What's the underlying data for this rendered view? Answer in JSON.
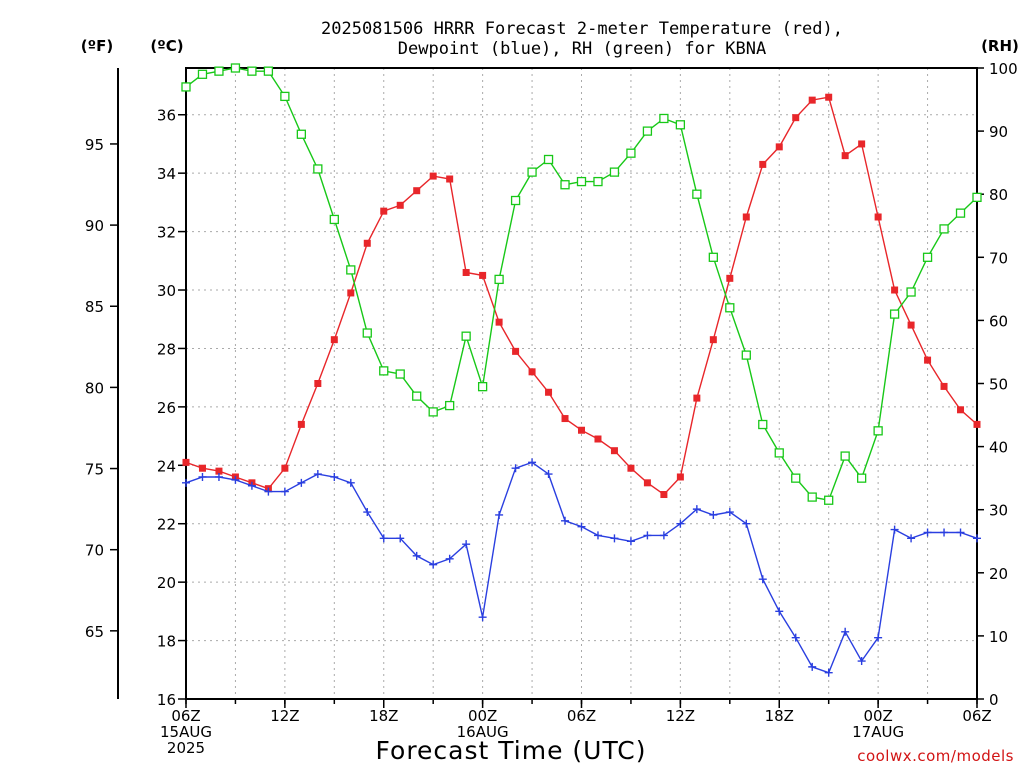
{
  "chart_data": {
    "type": "line",
    "title_lines": [
      "2025081506 HRRR Forecast 2-meter Temperature (red),",
      "Dewpoint (blue), RH (green) for KBNA"
    ],
    "xlabel": "Forecast Time (UTC)",
    "credit": "coolwx.com/models",
    "units": {
      "fahrenheit": "(ºF)",
      "celsius": "(ºC)",
      "rh": "(RH)"
    },
    "x_ticks": [
      {
        "hour": 0,
        "lines": [
          "06Z",
          "15AUG",
          "2025"
        ]
      },
      {
        "hour": 6,
        "lines": [
          "12Z"
        ]
      },
      {
        "hour": 12,
        "lines": [
          "18Z"
        ]
      },
      {
        "hour": 18,
        "lines": [
          "00Z",
          "16AUG"
        ]
      },
      {
        "hour": 24,
        "lines": [
          "06Z"
        ]
      },
      {
        "hour": 30,
        "lines": [
          "12Z"
        ]
      },
      {
        "hour": 36,
        "lines": [
          "18Z"
        ]
      },
      {
        "hour": 42,
        "lines": [
          "00Z",
          "17AUG"
        ]
      },
      {
        "hour": 48,
        "lines": [
          "06Z"
        ]
      }
    ],
    "x_range_hours": [
      0,
      48
    ],
    "celsius_range": [
      16,
      37.6
    ],
    "celsius_ticks": [
      16,
      18,
      20,
      22,
      24,
      26,
      28,
      30,
      32,
      34,
      36
    ],
    "fahrenheit_ticks": [
      65,
      70,
      75,
      80,
      85,
      90,
      95
    ],
    "rh_range": [
      0,
      100
    ],
    "rh_ticks": [
      0,
      10,
      20,
      30,
      40,
      50,
      60,
      70,
      80,
      90,
      100
    ],
    "grid": true,
    "colors": {
      "temperature": "#e8262a",
      "dewpoint": "#2a3fe0",
      "rh": "#18c818"
    },
    "series": [
      {
        "name": "Temperature",
        "unit": "°C",
        "axis": "celsius",
        "color": "#e8262a",
        "marker": "filled-square",
        "values": [
          24.1,
          23.9,
          23.8,
          23.6,
          23.4,
          23.2,
          23.9,
          25.4,
          26.8,
          28.3,
          29.9,
          31.6,
          32.7,
          32.9,
          33.4,
          33.9,
          33.8,
          30.6,
          30.5,
          28.9,
          27.9,
          27.2,
          26.5,
          25.6,
          25.2,
          24.9,
          24.5,
          23.9,
          23.4,
          23.0,
          23.6,
          26.3,
          28.3,
          30.4,
          32.5,
          34.3,
          34.9,
          35.9,
          36.5,
          36.6,
          34.6,
          35.0,
          32.5,
          30.0,
          28.8,
          27.6,
          26.7,
          25.9,
          25.4
        ]
      },
      {
        "name": "Dewpoint",
        "unit": "°C",
        "axis": "celsius",
        "color": "#2a3fe0",
        "marker": "plus",
        "values": [
          23.4,
          23.6,
          23.6,
          23.5,
          23.3,
          23.1,
          23.1,
          23.4,
          23.7,
          23.6,
          23.4,
          22.4,
          21.5,
          21.5,
          20.9,
          20.6,
          20.8,
          21.3,
          18.8,
          22.3,
          23.9,
          24.1,
          23.7,
          22.1,
          21.9,
          21.6,
          21.5,
          21.4,
          21.6,
          21.6,
          22.0,
          22.5,
          22.3,
          22.4,
          22.0,
          20.1,
          19.0,
          18.1,
          17.1,
          16.9,
          18.3,
          17.3,
          18.1,
          21.8,
          21.5,
          21.7,
          21.7,
          21.7,
          21.5
        ]
      },
      {
        "name": "RH",
        "unit": "%",
        "axis": "rh",
        "color": "#18c818",
        "marker": "open-square",
        "values": [
          97,
          99,
          99.5,
          100,
          99.5,
          99.5,
          95.5,
          89.5,
          84,
          76,
          68,
          58,
          52,
          51.5,
          48,
          45.5,
          46.5,
          57.5,
          49.5,
          66.5,
          79,
          83.5,
          85.5,
          81.5,
          82,
          82,
          83.5,
          86.5,
          90,
          92,
          91,
          80,
          70,
          62,
          54.5,
          43.5,
          39,
          35,
          32,
          31.5,
          38.5,
          35,
          42.5,
          61,
          64.5,
          70,
          74.5,
          77,
          79.5
        ]
      }
    ]
  }
}
